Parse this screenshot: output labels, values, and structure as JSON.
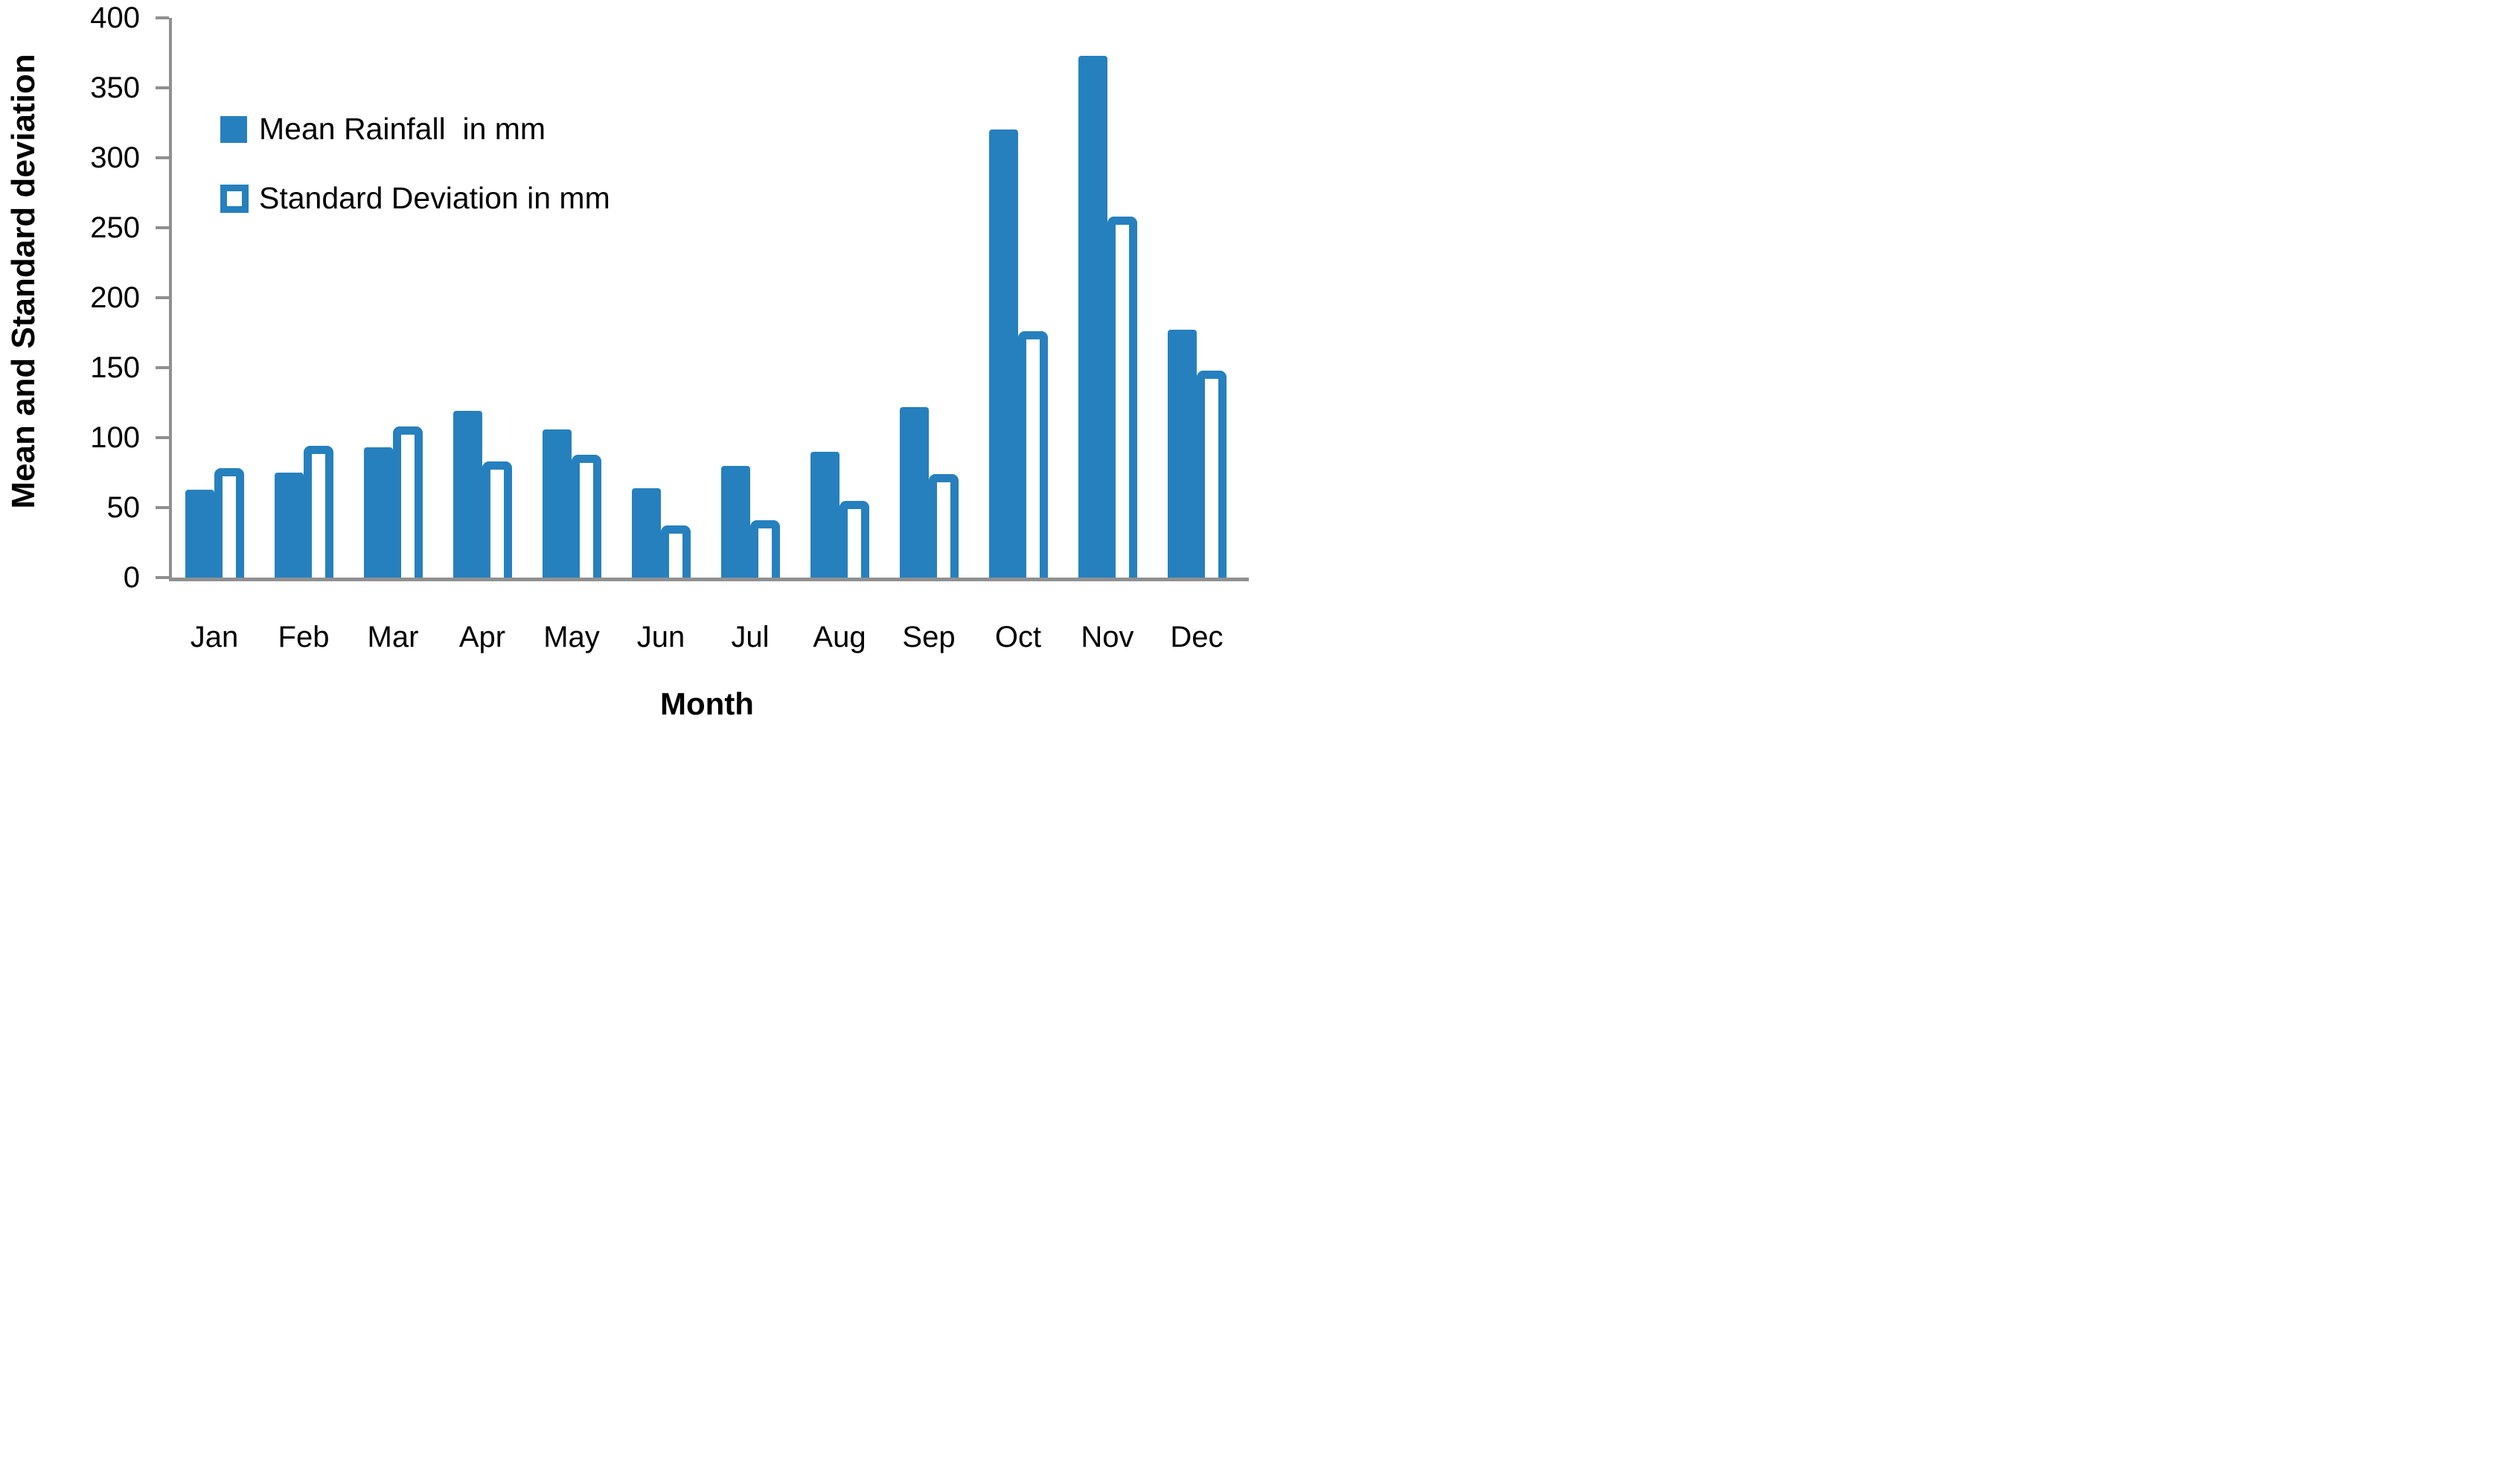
{
  "page": {
    "background": "#ffffff"
  },
  "legend": {
    "items": [
      {
        "label": "Mean Rainfall  in mm",
        "swatch": "filled-square"
      },
      {
        "label": "Standard Deviation in mm",
        "swatch": "outlined-square"
      }
    ]
  },
  "chart_data": {
    "type": "bar",
    "title": "",
    "categories": [
      "Jan",
      "Feb",
      "Mar",
      "Apr",
      "May",
      "Jun",
      "Jul",
      "Aug",
      "Sep",
      "Oct",
      "Nov",
      "Dec"
    ],
    "series": [
      {
        "name": "Mean Rainfall in mm",
        "values": [
          63,
          75,
          93,
          119,
          106,
          64,
          80,
          90,
          122,
          320,
          373,
          177
        ]
      },
      {
        "name": "Standard Deviation in mm",
        "values": [
          78,
          94,
          108,
          83,
          88,
          37,
          41,
          55,
          74,
          176,
          258,
          148
        ]
      }
    ],
    "xlabel": "Month",
    "ylabel": "Mean and Standard deviation",
    "ylim": [
      0,
      400
    ],
    "ytick_step": 50,
    "yticks": [
      0,
      50,
      100,
      150,
      200,
      250,
      300,
      350,
      400
    ],
    "grid": false,
    "legend_position": "upper-left-inside",
    "colors": {
      "accent": "#2680BE",
      "axis": "#909090",
      "text": "#000000"
    }
  }
}
